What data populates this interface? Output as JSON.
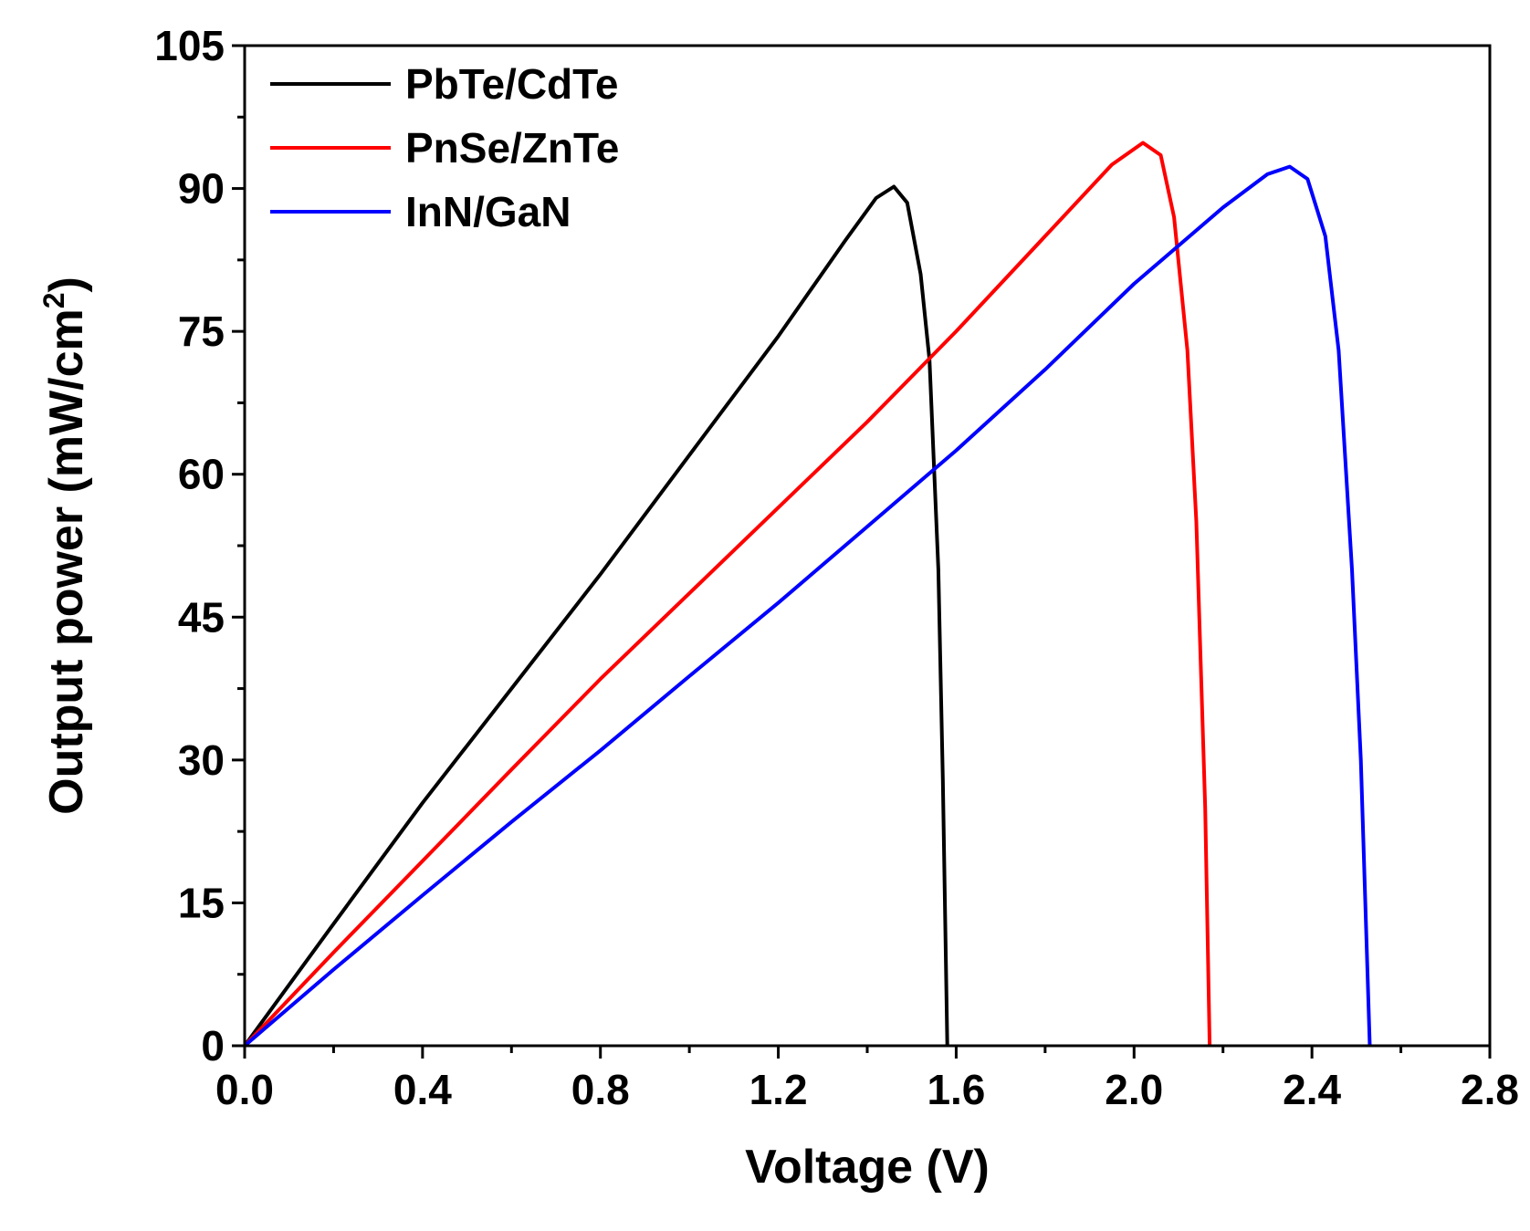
{
  "chart_data": {
    "type": "line",
    "title": "",
    "xlabel": "Voltage (V)",
    "ylabel_main": "Output power (mW/cm",
    "ylabel_sup": "2",
    "ylabel_close": ")",
    "xlim": [
      0.0,
      2.8
    ],
    "ylim": [
      0,
      105
    ],
    "xticks": [
      0.0,
      0.4,
      0.8,
      1.2,
      1.6,
      2.0,
      2.4,
      2.8
    ],
    "xtick_labels": [
      "0.0",
      "0.4",
      "0.8",
      "1.2",
      "1.6",
      "2.0",
      "2.4",
      "2.8"
    ],
    "yticks": [
      0,
      15,
      30,
      45,
      60,
      75,
      90,
      105
    ],
    "ytick_labels": [
      "0",
      "15",
      "30",
      "45",
      "60",
      "75",
      "90",
      "105"
    ],
    "grid": false,
    "legend_position": "top-left",
    "series": [
      {
        "name": "PbTe/CdTe",
        "color": "#000000",
        "x": [
          0.0,
          0.2,
          0.4,
          0.6,
          0.8,
          1.0,
          1.2,
          1.35,
          1.42,
          1.46,
          1.49,
          1.52,
          1.54,
          1.56,
          1.57,
          1.58
        ],
        "y": [
          0,
          12.8,
          25.5,
          37.5,
          49.5,
          62.0,
          74.5,
          84.5,
          89.0,
          90.2,
          88.5,
          81.0,
          72.0,
          50.0,
          28.0,
          0
        ]
      },
      {
        "name": "PnSe/ZnTe",
        "color": "#ff0000",
        "x": [
          0.0,
          0.2,
          0.4,
          0.6,
          0.8,
          1.0,
          1.2,
          1.4,
          1.6,
          1.8,
          1.95,
          2.02,
          2.06,
          2.09,
          2.12,
          2.14,
          2.16,
          2.17
        ],
        "y": [
          0,
          9.8,
          19.4,
          29.0,
          38.5,
          47.5,
          56.5,
          65.5,
          75.0,
          85.0,
          92.5,
          94.8,
          93.5,
          87.0,
          73.0,
          55.0,
          25.0,
          0
        ]
      },
      {
        "name": "InN/GaN",
        "color": "#0000ff",
        "x": [
          0.0,
          0.2,
          0.4,
          0.6,
          0.8,
          1.0,
          1.2,
          1.4,
          1.6,
          1.8,
          2.0,
          2.2,
          2.3,
          2.35,
          2.39,
          2.43,
          2.46,
          2.49,
          2.51,
          2.53
        ],
        "y": [
          0,
          8.0,
          15.8,
          23.5,
          31.0,
          38.8,
          46.5,
          54.5,
          62.5,
          71.0,
          80.0,
          88.0,
          91.5,
          92.3,
          91.0,
          85.0,
          73.0,
          50.0,
          30.0,
          0
        ]
      }
    ]
  }
}
